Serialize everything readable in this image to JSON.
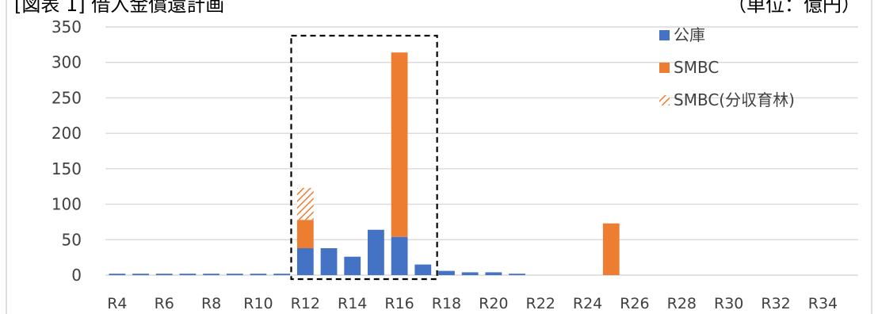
{
  "header": {
    "left_title": "[図表 1] 借入金償還計画",
    "right_unit": "（単位：億円）"
  },
  "chart_data": {
    "type": "bar",
    "stacked": true,
    "categories": [
      "R4",
      "R5",
      "R6",
      "R7",
      "R8",
      "R9",
      "R10",
      "R11",
      "R12",
      "R13",
      "R14",
      "R15",
      "R16",
      "R17",
      "R18",
      "R19",
      "R20",
      "R21",
      "R22",
      "R23",
      "R24",
      "R25",
      "R26",
      "R27",
      "R28",
      "R29",
      "R30",
      "R31",
      "R32",
      "R33",
      "R34",
      "R35"
    ],
    "x_tick_labels": [
      "R4",
      "R6",
      "R8",
      "R10",
      "R12",
      "R14",
      "R16",
      "R18",
      "R20",
      "R22",
      "R24",
      "R26",
      "R28",
      "R30",
      "R32",
      "R34"
    ],
    "series": [
      {
        "name": "公庫",
        "color": "#4472C4",
        "values": [
          2,
          2,
          2,
          2,
          2,
          2,
          2,
          2,
          38,
          38,
          26,
          64,
          54,
          15,
          6,
          4,
          4,
          2,
          0,
          0,
          0,
          0,
          0,
          0,
          0,
          0,
          0,
          0,
          0,
          0,
          0,
          0
        ]
      },
      {
        "name": "SMBC",
        "color": "#ED7D31",
        "values": [
          0,
          0,
          0,
          0,
          0,
          0,
          0,
          0,
          40,
          0,
          0,
          0,
          260,
          0,
          0,
          0,
          0,
          0,
          0,
          0,
          0,
          73,
          0,
          0,
          0,
          0,
          0,
          0,
          0,
          0,
          0,
          0
        ]
      },
      {
        "name": "SMBC(分収育林)",
        "color": "#ED7D31",
        "pattern": "hatched",
        "values": [
          0,
          0,
          0,
          0,
          0,
          0,
          0,
          0,
          45,
          0,
          0,
          0,
          0,
          0,
          0,
          0,
          0,
          0,
          0,
          0,
          0,
          0,
          0,
          0,
          0,
          0,
          0,
          0,
          0,
          0,
          0,
          0
        ]
      }
    ],
    "yticks": [
      0,
      50,
      100,
      150,
      200,
      250,
      300,
      350
    ],
    "ylim": [
      0,
      350
    ],
    "grid": true,
    "legend_position": "top-right",
    "highlight_box": {
      "from": "R12",
      "to": "R17",
      "style": "dashed"
    }
  }
}
